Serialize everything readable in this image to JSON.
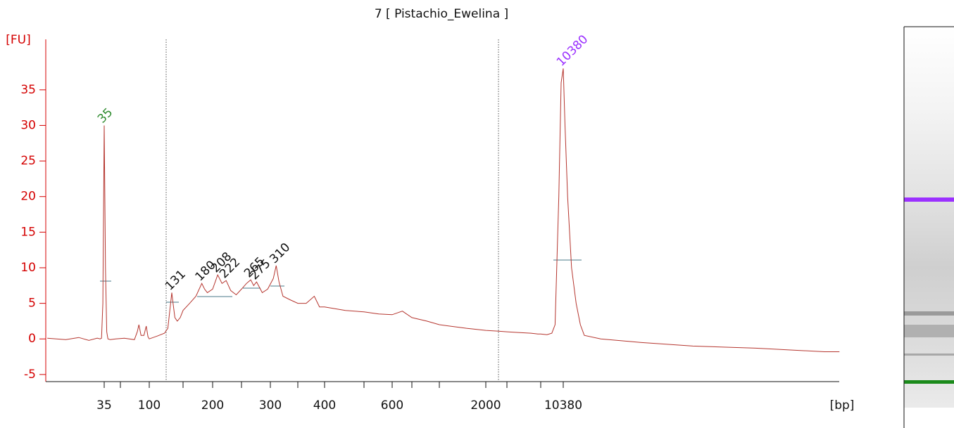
{
  "chart_data": {
    "type": "line",
    "title": "7  [ Pistachio_Ewelina ]",
    "y_label": "[FU]",
    "x_label": "[bp]",
    "color": "#b5352e",
    "ylim": [
      -6,
      41.5
    ],
    "yticks": [
      -5,
      0,
      5,
      10,
      15,
      20,
      25,
      30,
      35
    ],
    "xlim": [
      10,
      1300000
    ],
    "log_x": true,
    "xticks": [
      35,
      {
        "value": 50,
        "label": null
      },
      100,
      {
        "value": 150,
        "label": null
      },
      200,
      {
        "value": 250,
        "label": null
      },
      300,
      {
        "value": 350,
        "label": null
      },
      400,
      {
        "value": 500,
        "label": null
      },
      600,
      {
        "value": 700,
        "label": null
      },
      {
        "value": 1000,
        "label": null
      },
      2000,
      {
        "value": 3000,
        "label": null
      },
      {
        "value": 7000,
        "label": null
      },
      10380
    ],
    "x": [
      10,
      15,
      20,
      25,
      30,
      32,
      33,
      34,
      35,
      36,
      37,
      38,
      40,
      45,
      55,
      70,
      75,
      78,
      82,
      88,
      93,
      97,
      100,
      110,
      120,
      125,
      128,
      131,
      133,
      136,
      140,
      145,
      150,
      160,
      170,
      180,
      185,
      190,
      200,
      208,
      215,
      222,
      230,
      240,
      250,
      258,
      265,
      270,
      275,
      285,
      295,
      305,
      310,
      315,
      322,
      335,
      350,
      365,
      380,
      390,
      400,
      450,
      500,
      550,
      600,
      650,
      700,
      850,
      1000,
      1500,
      2000,
      2500,
      3000,
      4000,
      5500,
      6500,
      7000,
      7800,
      8500,
      9000,
      9600,
      10000,
      10380,
      10700,
      11200,
      12000,
      13000,
      14000,
      15000,
      20000,
      40000,
      100000,
      300000,
      1000000,
      1300000
    ],
    "values": [
      0.1,
      -0.1,
      0.2,
      -0.2,
      0.1,
      0,
      0.1,
      5,
      30,
      10,
      1,
      0,
      -0.1,
      0,
      0.1,
      -0.1,
      1,
      2,
      0.5,
      0.5,
      1.8,
      0.3,
      0,
      0.4,
      0.8,
      1.5,
      4,
      6.5,
      5,
      3,
      2.5,
      3,
      4,
      5,
      6,
      7.8,
      7,
      6.5,
      7,
      9,
      7.8,
      8.2,
      6.8,
      6.2,
      7,
      7.8,
      8.3,
      7.5,
      8,
      6.5,
      7,
      8.5,
      10.3,
      8,
      6,
      5.5,
      5,
      5,
      6,
      4.5,
      4.5,
      4,
      3.8,
      3.5,
      3.4,
      3.9,
      3,
      2.5,
      2,
      1.5,
      1.2,
      1.1,
      1,
      0.9,
      0.8,
      0.7,
      0.7,
      0.6,
      0.8,
      2,
      20,
      36,
      38,
      30,
      20,
      10,
      5,
      2,
      0.5,
      0,
      -0.5,
      -1,
      -1.3,
      -1.8,
      -1.8
    ],
    "peaks": [
      {
        "bp": 35,
        "color": "#2e8b2e"
      },
      {
        "bp": 131,
        "color": "#111111"
      },
      {
        "bp": 180,
        "color": "#111111"
      },
      {
        "bp": 208,
        "color": "#111111"
      },
      {
        "bp": 222,
        "color": "#111111"
      },
      {
        "bp": 265,
        "color": "#111111"
      },
      {
        "bp": 275,
        "color": "#111111"
      },
      {
        "bp": 310,
        "color": "#111111"
      },
      {
        "bp": 10380,
        "color": "#9b30ff"
      }
    ]
  }
}
